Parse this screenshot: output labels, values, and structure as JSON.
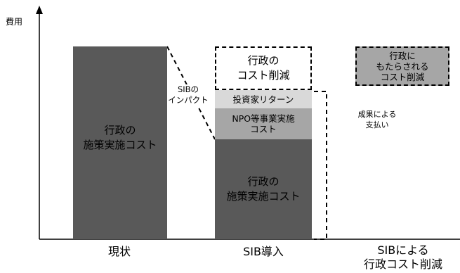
{
  "diagram": {
    "y_axis_label": "費用",
    "categories": [
      "現状",
      "SIB導入",
      "SIBによる\n行政コスト削減"
    ],
    "bars": {
      "current_policy_cost": "行政の\n施策実施コスト",
      "sib_policy_cost": "行政の\n施策実施コスト",
      "admin_cost_reduction": "行政の\nコスト削減",
      "investor_return": "投資家リターン",
      "npo_cost": "NPO等事業実施\nコスト",
      "resulting_reduction": "行政に\nもたらされる\nコスト削減"
    },
    "annotations": {
      "sib_impact": "SIBの\nインパクト",
      "outcome_payment": "成果による\n支払い"
    },
    "colors": {
      "dark_bar": "#595959",
      "light_bar": "#d9d9d9",
      "mid_bar": "#a6a6a6",
      "border": "#000000"
    }
  }
}
